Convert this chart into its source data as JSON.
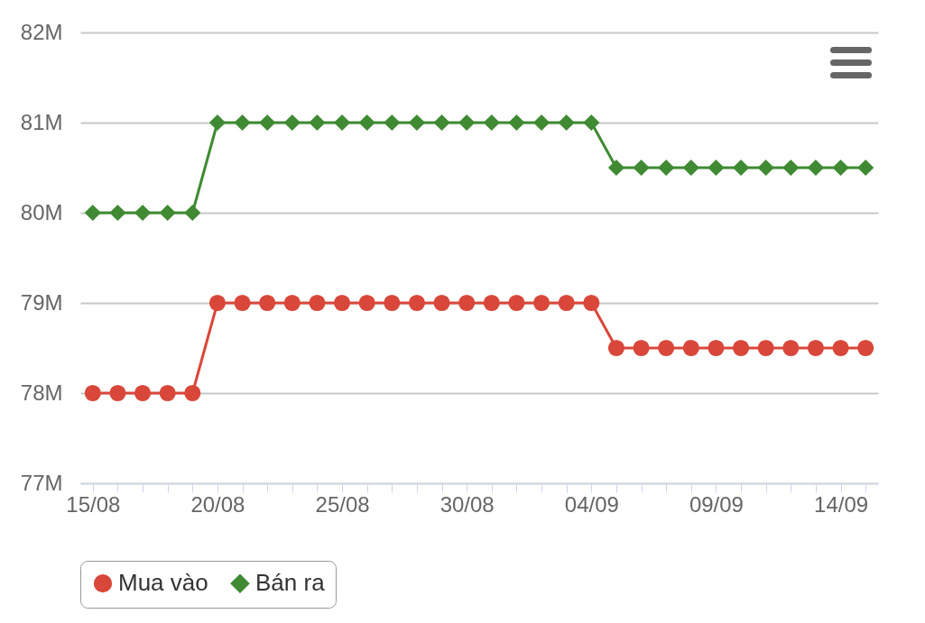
{
  "chart_data": {
    "type": "line",
    "categories": [
      "15/08",
      null,
      null,
      null,
      null,
      "20/08",
      null,
      null,
      null,
      null,
      "25/08",
      null,
      null,
      null,
      null,
      "30/08",
      null,
      null,
      null,
      null,
      "04/09",
      null,
      null,
      null,
      null,
      "09/09",
      null,
      null,
      null,
      null,
      "14/09",
      null
    ],
    "series": [
      {
        "name": "Mua vào",
        "color": "#d9473a",
        "marker": "circle",
        "values": [
          78000000,
          78000000,
          78000000,
          78000000,
          78000000,
          79000000,
          79000000,
          79000000,
          79000000,
          79000000,
          79000000,
          79000000,
          79000000,
          79000000,
          79000000,
          79000000,
          79000000,
          79000000,
          79000000,
          79000000,
          79000000,
          78500000,
          78500000,
          78500000,
          78500000,
          78500000,
          78500000,
          78500000,
          78500000,
          78500000,
          78500000,
          78500000
        ]
      },
      {
        "name": "Bán ra",
        "color": "#3f8a33",
        "marker": "diamond",
        "values": [
          80000000,
          80000000,
          80000000,
          80000000,
          80000000,
          81000000,
          81000000,
          81000000,
          81000000,
          81000000,
          81000000,
          81000000,
          81000000,
          81000000,
          81000000,
          81000000,
          81000000,
          81000000,
          81000000,
          81000000,
          81000000,
          80500000,
          80500000,
          80500000,
          80500000,
          80500000,
          80500000,
          80500000,
          80500000,
          80500000,
          80500000,
          80500000
        ]
      }
    ],
    "ylim": [
      77000000,
      82000000
    ],
    "yticks": [
      {
        "value": 77000000,
        "label": "77M"
      },
      {
        "value": 78000000,
        "label": "78M"
      },
      {
        "value": 79000000,
        "label": "79M"
      },
      {
        "value": 80000000,
        "label": "80M"
      },
      {
        "value": 81000000,
        "label": "81M"
      },
      {
        "value": 82000000,
        "label": "82M"
      }
    ],
    "grid": "y",
    "legend": "bottom"
  }
}
